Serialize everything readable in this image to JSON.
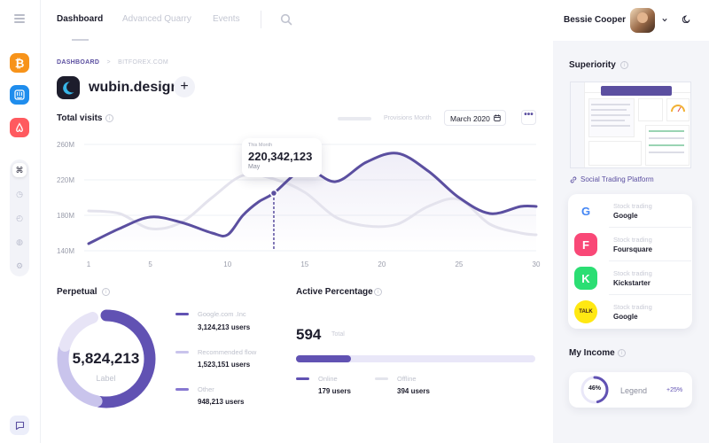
{
  "header": {
    "tabs": [
      {
        "label": "Dashboard",
        "active": true
      },
      {
        "label": "Advanced Quarry",
        "active": false
      },
      {
        "label": "Events",
        "active": false
      }
    ],
    "user_name": "Bessie Cooper"
  },
  "breadcrumb": {
    "root": "DASHBOARD",
    "separator": ">",
    "current": "BITFOREX.COM"
  },
  "brand": {
    "name": "wubin.design",
    "add_label": "+"
  },
  "total_visits": {
    "title": "Total visits",
    "provisions_label": "Provisions Month",
    "month": "March 2020",
    "more": "•••",
    "tooltip": {
      "label": "This Month",
      "value": "220,342,123",
      "sub": "May"
    }
  },
  "chart_data": {
    "type": "line",
    "title": "Total visits",
    "xlabel": "",
    "ylabel": "",
    "x_ticks": [
      "1",
      "5",
      "10",
      "15",
      "20",
      "25",
      "30"
    ],
    "y_ticks": [
      "260M",
      "220M",
      "180M",
      "140M"
    ],
    "ylim": [
      140,
      260
    ],
    "xlim": [
      1,
      30
    ],
    "grid": true,
    "series": [
      {
        "color": "#5b4fa0",
        "x": [
          1,
          3,
          5,
          7,
          9,
          10,
          11,
          12,
          13,
          15,
          17,
          19,
          21,
          23,
          25,
          27,
          29,
          30
        ],
        "y": [
          148,
          165,
          178,
          172,
          160,
          158,
          180,
          195,
          205,
          232,
          218,
          240,
          250,
          230,
          200,
          182,
          190,
          190
        ]
      },
      {
        "color": "#e4e3ed",
        "x": [
          1,
          3,
          5,
          7,
          9,
          11,
          13,
          15,
          17,
          19,
          21,
          23,
          25,
          27,
          29,
          30
        ],
        "y": [
          185,
          182,
          165,
          172,
          200,
          225,
          221,
          206,
          178,
          168,
          170,
          190,
          198,
          170,
          160,
          158
        ]
      }
    ],
    "marker": {
      "x": 13,
      "y": 205
    }
  },
  "perpetual": {
    "title": "Perpetual",
    "total": "5,824,213",
    "total_label": "Label",
    "items": [
      {
        "name": "Google.com .Inc",
        "value": "3,124,213 users",
        "color": "#6152b3"
      },
      {
        "name": "Recommended flow",
        "value": "1,523,151 users",
        "color": "#c9c4ec"
      },
      {
        "name": "Other",
        "value": "948,213 users",
        "color": "#8778d1"
      }
    ],
    "donut": [
      {
        "fraction": 0.535,
        "color": "#6152b3"
      },
      {
        "fraction": 0.262,
        "color": "#c9c4ec"
      },
      {
        "fraction": 0.163,
        "color": "#e7e4f6"
      }
    ]
  },
  "active": {
    "title": "Active Percentage",
    "value": "594",
    "value_label": "Total",
    "progress": 0.23,
    "items": [
      {
        "name": "Online",
        "value": "179 users",
        "color": "#6152b3"
      },
      {
        "name": "Offline",
        "value": "394 users",
        "color": "#e3e4ec"
      }
    ]
  },
  "right": {
    "superiority_title": "Superiority",
    "social_link": "Social Trading Platform",
    "stocks": [
      {
        "type": "Stock trading",
        "name": "Google",
        "logo": "G",
        "bg": "#ffffff",
        "fg": "#4285f4"
      },
      {
        "type": "Stock trading",
        "name": "Foursquare",
        "logo": "F",
        "bg": "#f94877",
        "fg": "#ffffff"
      },
      {
        "type": "Stock trading",
        "name": "Kickstarter",
        "logo": "K",
        "bg": "#2bde73",
        "fg": "#ffffff"
      },
      {
        "type": "Stock trading",
        "name": "Google",
        "logo": "TALK",
        "bg": "#ffe812",
        "fg": "#3c1e1e"
      }
    ],
    "income_title": "My Income",
    "income": {
      "percent": "46%",
      "progress": 0.46,
      "label": "Legend",
      "change": "+25%"
    }
  },
  "colors": {
    "accent": "#5b4fa0",
    "accent_light": "#c9c4ec",
    "bitcoin": "#f7931a",
    "intercom": "#1f8ded",
    "airbnb": "#ff5a5f"
  }
}
